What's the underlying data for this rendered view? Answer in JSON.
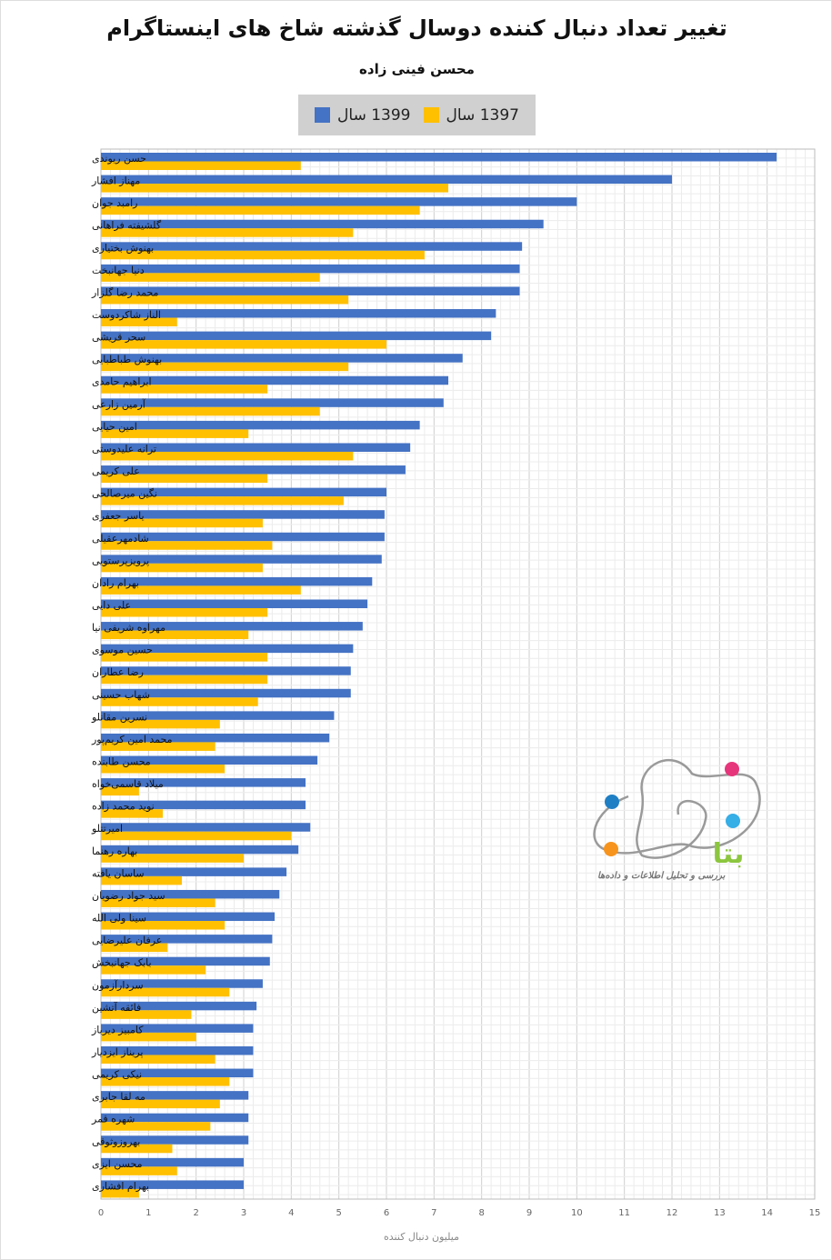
{
  "chart_data": {
    "type": "bar",
    "orientation": "horizontal",
    "title": "تغییر تعداد دنبال کننده دوسال گذشته شاخ های اینستاگرام",
    "subtitle": "محسن فینی زاده",
    "xlabel": "میلیون دنبال کننده",
    "ylabel": "",
    "xlim": [
      0,
      15
    ],
    "xticks": [
      "0",
      "1",
      "2",
      "3",
      "4",
      "5",
      "6",
      "7",
      "8",
      "9",
      "10",
      "11",
      "12",
      "13",
      "14",
      "15"
    ],
    "grid": true,
    "legend_position": "top",
    "categories": [
      "حسن ریوندی",
      "مهناز افشار",
      "رامبد جوان",
      "گلشیفته فراهانی",
      "بهنوش بختیاری",
      "دنیا جهانبخت",
      "محمد رضا گلزار",
      "الناز شاکردوست",
      "سحر قریشی",
      "بهنوش طباطبایی",
      "ابراهیم حامدی",
      "آرمین زارعی",
      "امین حیایی",
      "ترانه علیدوستی",
      "علی کریمی",
      "نگین میرصالحی",
      "یاسر جعفری",
      "شادمهرعقیلی",
      "پرویزپرستویی",
      "بهرام رادان",
      "علی دایی",
      "مهراوه شریفی نیا",
      "حسین موسوی",
      "رضا عطاران",
      "شهاب حسینی",
      "نسرین مقانلو",
      "محمد امین کریم‌پور",
      "محسن طابنده",
      "میلاد قاسمی‌خواه",
      "نوید محمد زاده",
      "امیرتتلو",
      "بهاره رهنما",
      "ساسان یافته",
      "سید جواد رضویان",
      "سینا ولی الله",
      "عرفان علیرضایی",
      "بابک جهانبخش",
      "سردارآزمون",
      "فائقه آتشین",
      "کامبیز دیرباز",
      "پریناز ایزدیار",
      "نیکی کریمی",
      "مه لقا جابری",
      "شهره قمر",
      "بهروزوثوقی",
      "محسن ایزی",
      "بهرام افشاری"
    ],
    "series": [
      {
        "name": "1399 سال",
        "color": "#4472c4",
        "values": [
          14.2,
          12.0,
          10.0,
          9.3,
          8.85,
          8.8,
          8.8,
          8.3,
          8.2,
          7.6,
          7.3,
          7.2,
          6.7,
          6.5,
          6.4,
          6.0,
          5.96,
          5.96,
          5.9,
          5.7,
          5.6,
          5.5,
          5.3,
          5.25,
          5.25,
          4.9,
          4.8,
          4.55,
          4.3,
          4.3,
          4.4,
          4.15,
          3.9,
          3.75,
          3.65,
          3.6,
          3.55,
          3.4,
          3.27,
          3.2,
          3.2,
          3.2,
          3.1,
          3.1,
          3.1,
          3.0,
          3.0
        ]
      },
      {
        "name": "1397 سال",
        "color": "#ffc000",
        "values": [
          4.2,
          7.3,
          6.7,
          5.3,
          6.8,
          4.6,
          5.2,
          1.6,
          6.0,
          5.2,
          3.5,
          4.6,
          3.1,
          5.3,
          3.5,
          5.1,
          3.4,
          3.6,
          3.4,
          4.2,
          3.5,
          3.1,
          3.5,
          3.5,
          3.3,
          2.5,
          2.4,
          2.6,
          0.8,
          1.3,
          4.0,
          3.0,
          1.7,
          2.4,
          2.6,
          1.4,
          2.2,
          2.7,
          1.9,
          2.0,
          2.4,
          2.7,
          2.5,
          2.3,
          1.5,
          1.6,
          0.8
        ]
      }
    ]
  },
  "logo": {
    "name": "بتا",
    "tagline": "بررسی و تحلیل اطلاعات و داده‌ها"
  }
}
